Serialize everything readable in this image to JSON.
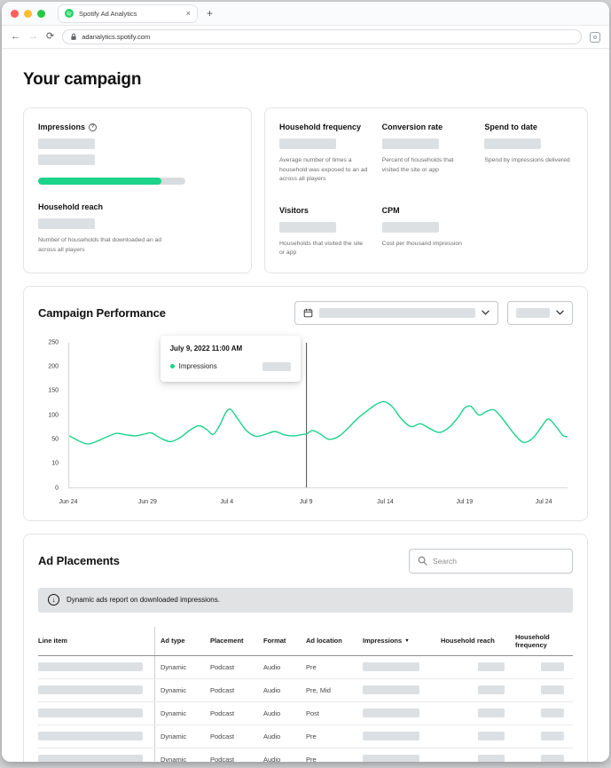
{
  "browser": {
    "tab_title": "Spotify Ad Analytics",
    "url": "adanalytics.spotify.com"
  },
  "icons": {
    "back": "←",
    "forward": "→",
    "reload": "⟳",
    "close_tab": "×",
    "new_tab": "+",
    "info": "?",
    "banner_download": "↓",
    "sort_desc": "▼"
  },
  "colors": {
    "accent": "#1bd389",
    "placeholder": "#dce0e3",
    "favicon_green": "#1ed760",
    "traffic_red": "#ff5f57",
    "traffic_yellow": "#febc2e",
    "traffic_green": "#28c840"
  },
  "page": {
    "title": "Your campaign"
  },
  "metrics": {
    "left_card": {
      "impressions_label": "Impressions",
      "progress_percent": 84,
      "household_reach_label": "Household reach",
      "household_reach_desc": "Number of households that downloaded an ad across all players"
    },
    "stats": [
      {
        "label": "Household frequency",
        "desc": "Average number of times a household was exposed to an ad across all players"
      },
      {
        "label": "Conversion rate",
        "desc": "Percent of households that visited the site or app"
      },
      {
        "label": "Spend to date",
        "desc": "Spend by impressions delivered"
      },
      {
        "label": "Visitors",
        "desc": "Households that visited the site or app"
      },
      {
        "label": "CPM",
        "desc": "Cost per thousand impression"
      }
    ]
  },
  "performance": {
    "title": "Campaign Performance",
    "tooltip": {
      "title": "July 9, 2022 11:00 AM",
      "series_label": "Impressions"
    }
  },
  "chart_data": {
    "type": "line",
    "title": "Campaign Performance",
    "xlabel": "",
    "ylabel": "",
    "grid": "none",
    "y_ticks": [
      0,
      10,
      50,
      100,
      150,
      200,
      250
    ],
    "y_scale": "equal-tick-spacing",
    "x_range": [
      0,
      31.5
    ],
    "x_unit": "days since Jun 24, 2022",
    "x_tick_positions": [
      0,
      5,
      10,
      15,
      20,
      25,
      30
    ],
    "x_tick_labels": [
      "Jun 24",
      "Jun 29",
      "Jul 4",
      "Jul 9",
      "Jul 14",
      "Jul 19",
      "Jul 24"
    ],
    "marker_x": 15,
    "series": [
      {
        "name": "Impressions",
        "color": "#1bd389",
        "x": [
          0,
          0.7,
          1.2,
          1.8,
          2.4,
          3.0,
          3.6,
          4.2,
          4.8,
          5.2,
          5.8,
          6.4,
          7.0,
          7.6,
          8.2,
          8.7,
          9.1,
          9.5,
          9.9,
          10.2,
          10.6,
          11.2,
          11.8,
          12.4,
          13.0,
          13.6,
          14.2,
          14.8,
          15.0,
          15.4,
          15.9,
          16.4,
          17.0,
          17.6,
          18.2,
          18.8,
          19.4,
          19.9,
          20.4,
          21.0,
          21.6,
          22.2,
          22.8,
          23.4,
          24.0,
          24.6,
          25.0,
          25.4,
          25.9,
          26.4,
          26.9,
          27.5,
          28.1,
          28.7,
          29.3,
          29.9,
          30.3,
          30.8,
          31.2,
          31.5
        ],
        "y": [
          57,
          46,
          42,
          47,
          55,
          62,
          59,
          57,
          61,
          63,
          52,
          46,
          53,
          68,
          78,
          70,
          60,
          78,
          105,
          112,
          95,
          68,
          56,
          60,
          66,
          59,
          57,
          60,
          61,
          68,
          60,
          50,
          55,
          72,
          92,
          108,
          122,
          128,
          118,
          92,
          76,
          82,
          72,
          64,
          74,
          96,
          115,
          118,
          100,
          108,
          110,
          88,
          62,
          45,
          52,
          78,
          92,
          75,
          58,
          55
        ]
      }
    ]
  },
  "placements": {
    "title": "Ad Placements",
    "search_placeholder": "Search",
    "banner": "Dynamic ads report on downloaded impressions.",
    "columns": [
      "Line item",
      "Ad type",
      "Placement",
      "Format",
      "Ad location",
      "Impressions",
      "Household reach",
      "Household frequency"
    ],
    "sorted_column": "Impressions",
    "sort_direction": "desc",
    "rows": [
      {
        "ad_type": "Dynamic",
        "placement": "Podcast",
        "format": "Audio",
        "ad_location": "Pre"
      },
      {
        "ad_type": "Dynamic",
        "placement": "Podcast",
        "format": "Audio",
        "ad_location": "Pre, Mid"
      },
      {
        "ad_type": "Dynamic",
        "placement": "Podcast",
        "format": "Audio",
        "ad_location": "Post"
      },
      {
        "ad_type": "Dynamic",
        "placement": "Podcast",
        "format": "Audio",
        "ad_location": "Pre"
      },
      {
        "ad_type": "Dynamic",
        "placement": "Podcast",
        "format": "Audio",
        "ad_location": "Pre"
      }
    ]
  }
}
